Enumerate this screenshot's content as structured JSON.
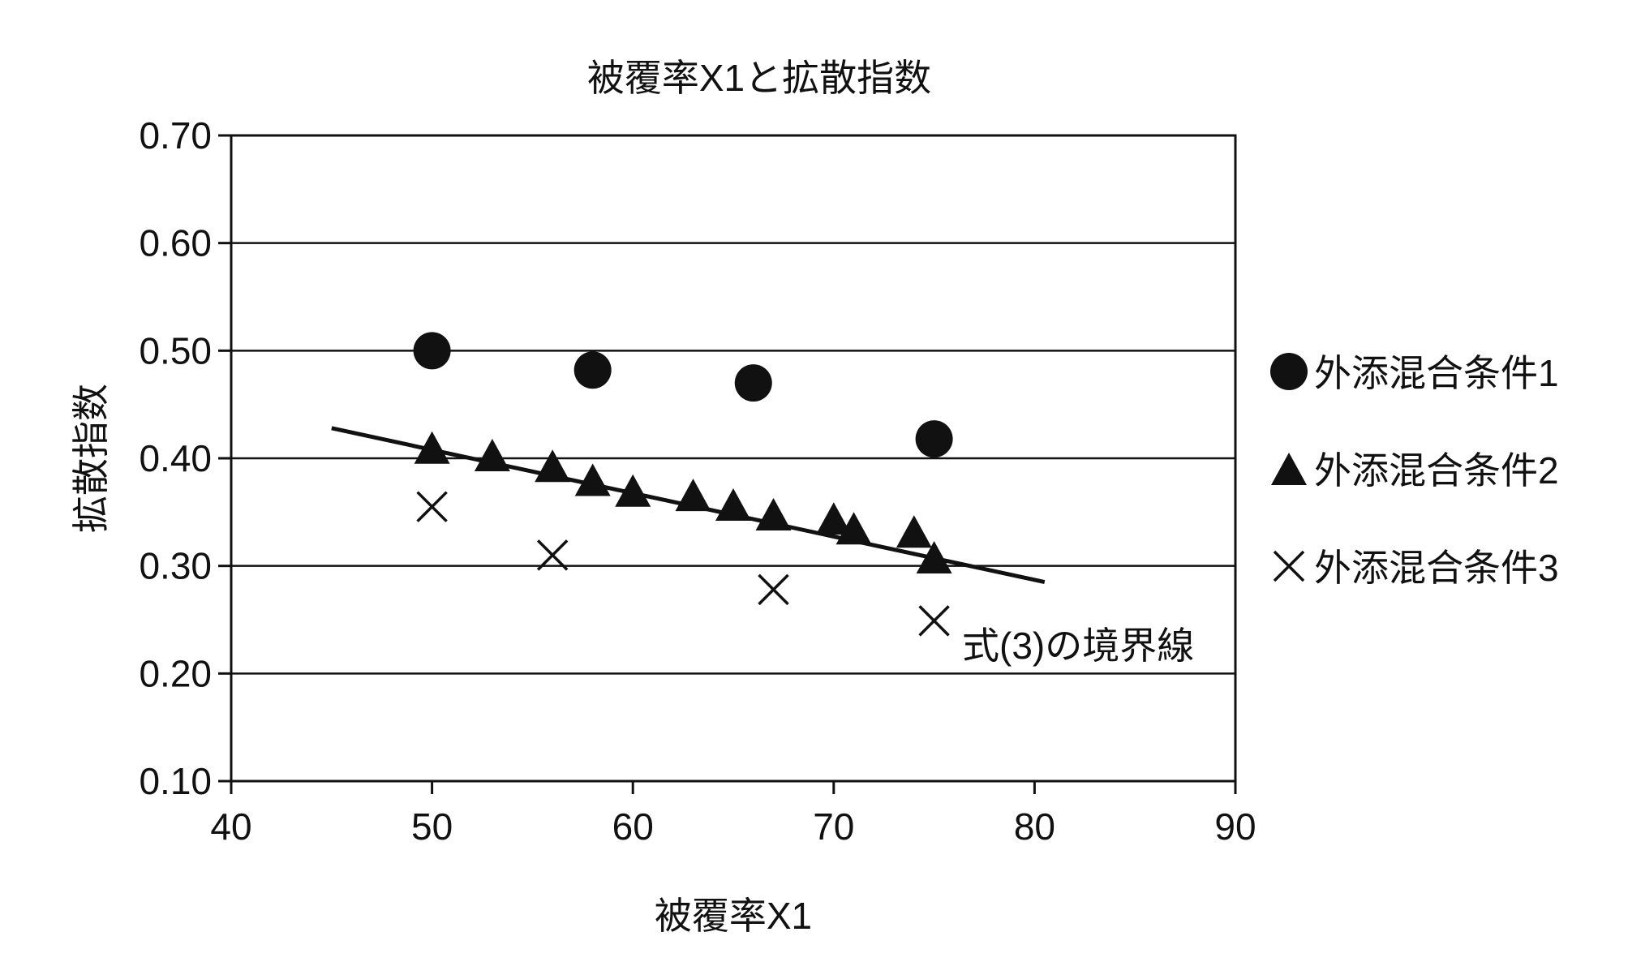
{
  "colors": {
    "ink": "#111111",
    "background": "#ffffff"
  },
  "chart_data": {
    "type": "scatter",
    "title": "被覆率X1と拡散指数",
    "xlabel": "被覆率X1",
    "ylabel": "拡散指数",
    "xlim": [
      40,
      90
    ],
    "ylim": [
      0.1,
      0.7
    ],
    "x_ticks": [
      "40",
      "50",
      "60",
      "70",
      "80",
      "90"
    ],
    "y_ticks": [
      "0.10",
      "0.20",
      "0.30",
      "0.40",
      "0.50",
      "0.60",
      "0.70"
    ],
    "grid": "horizontal",
    "legend_position": "right",
    "series": [
      {
        "name": "外添混合条件1",
        "marker": "circle",
        "points": [
          [
            50,
            0.5
          ],
          [
            58,
            0.482
          ],
          [
            66,
            0.47
          ],
          [
            75,
            0.418
          ]
        ]
      },
      {
        "name": "外添混合条件2",
        "marker": "triangle",
        "points": [
          [
            50,
            0.41
          ],
          [
            53,
            0.403
          ],
          [
            56,
            0.393
          ],
          [
            58,
            0.38
          ],
          [
            60,
            0.37
          ],
          [
            63,
            0.366
          ],
          [
            65,
            0.357
          ],
          [
            67,
            0.348
          ],
          [
            70,
            0.344
          ],
          [
            71,
            0.335
          ],
          [
            74,
            0.332
          ],
          [
            75,
            0.308
          ]
        ]
      },
      {
        "name": "外添混合条件3",
        "marker": "cross",
        "points": [
          [
            50,
            0.355
          ],
          [
            56,
            0.31
          ],
          [
            67,
            0.278
          ],
          [
            75,
            0.249
          ]
        ]
      }
    ],
    "boundary_line": {
      "label": "式(3)の境界線",
      "points": [
        [
          45,
          0.428
        ],
        [
          80.5,
          0.285
        ]
      ]
    }
  }
}
